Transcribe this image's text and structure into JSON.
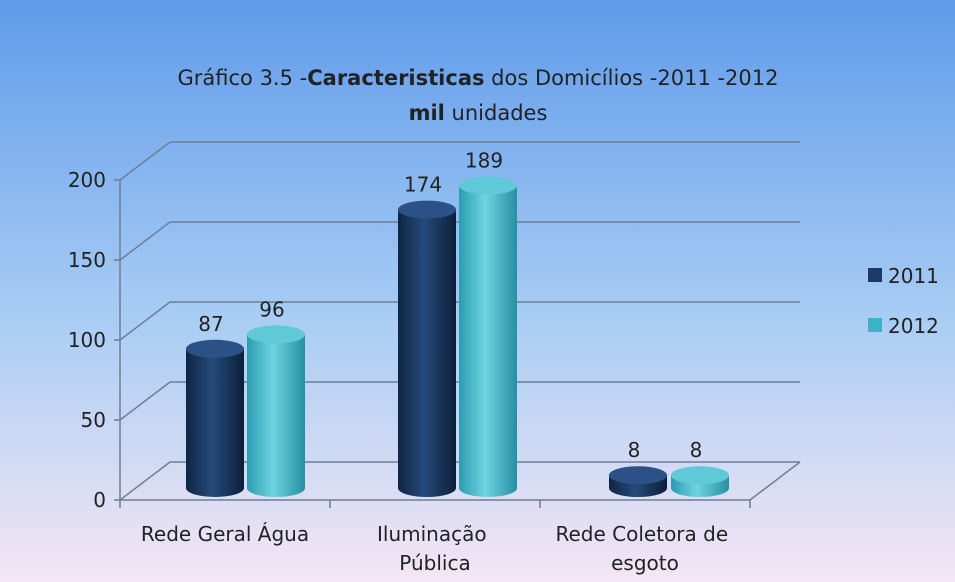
{
  "chart_data": {
    "type": "bar",
    "title_part1": "Gráfico 3.5 -",
    "title_bold": "Caracteristicas",
    "title_part2": " dos Domicílios -2011 -2012",
    "subtitle_bold": "mil",
    "subtitle_rest": " unidades",
    "categories": [
      [
        "Rede Geral Água"
      ],
      [
        "Iluminação",
        "Pública"
      ],
      [
        "Rede Coletora de",
        "esgoto"
      ]
    ],
    "series": [
      {
        "name": "2011",
        "values": [
          87,
          174,
          8
        ],
        "labels": [
          "87",
          "174",
          "8"
        ],
        "color": "#1c3a63"
      },
      {
        "name": "2012",
        "values": [
          96,
          189,
          8
        ],
        "labels": [
          "96",
          "189",
          "8"
        ],
        "color": "#3bb3c6"
      }
    ],
    "y_ticks": [
      "0",
      "50",
      "100",
      "150",
      "200"
    ],
    "ylim": [
      0,
      200
    ],
    "grid": true,
    "legend_position": "right"
  }
}
